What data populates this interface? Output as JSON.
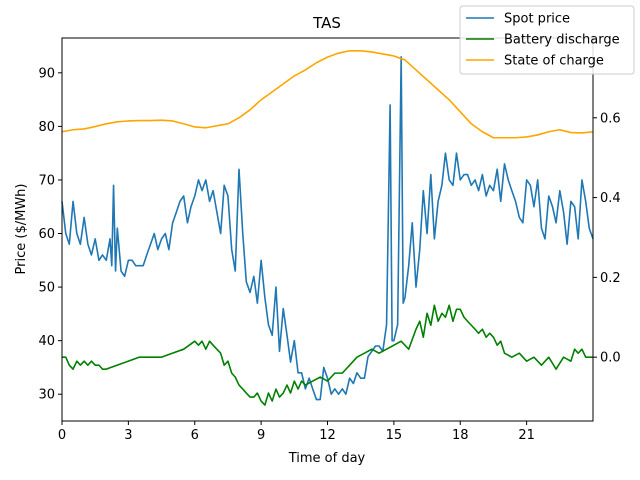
{
  "chart_data": {
    "type": "line",
    "title": "TAS",
    "xlabel": "Time of day",
    "ylabel": "Price ($/MWh)",
    "xlim": [
      0,
      24
    ],
    "ylim_left": [
      25,
      96.5
    ],
    "ylim_right": [
      -0.16,
      0.8
    ],
    "x_ticks": [
      0,
      3,
      6,
      9,
      12,
      15,
      18,
      21
    ],
    "y_ticks_left": [
      30,
      40,
      50,
      60,
      70,
      80,
      90
    ],
    "y_ticks_right": [
      0.0,
      0.2,
      0.4,
      0.6
    ],
    "legend_position": "top-right",
    "grid": false,
    "series": [
      {
        "name": "Spot price",
        "color": "#1f77b4",
        "axis": "left",
        "x": [
          0,
          0.17,
          0.33,
          0.5,
          0.67,
          0.83,
          1.0,
          1.17,
          1.33,
          1.5,
          1.67,
          1.83,
          2.0,
          2.17,
          2.25,
          2.33,
          2.42,
          2.5,
          2.67,
          2.83,
          3.0,
          3.17,
          3.33,
          3.5,
          3.67,
          3.83,
          4.0,
          4.17,
          4.33,
          4.5,
          4.67,
          4.83,
          5.0,
          5.17,
          5.33,
          5.5,
          5.67,
          5.83,
          6.0,
          6.17,
          6.33,
          6.5,
          6.67,
          6.83,
          7.0,
          7.17,
          7.33,
          7.5,
          7.67,
          7.83,
          8.0,
          8.17,
          8.33,
          8.5,
          8.67,
          8.83,
          9.0,
          9.17,
          9.33,
          9.5,
          9.67,
          9.83,
          10.0,
          10.17,
          10.33,
          10.5,
          10.67,
          10.83,
          11.0,
          11.17,
          11.33,
          11.5,
          11.67,
          11.83,
          12.0,
          12.17,
          12.33,
          12.5,
          12.67,
          12.83,
          13.0,
          13.17,
          13.33,
          13.5,
          13.67,
          13.83,
          14.0,
          14.17,
          14.33,
          14.5,
          14.67,
          14.83,
          14.92,
          15.0,
          15.17,
          15.33,
          15.42,
          15.5,
          15.67,
          15.83,
          16.0,
          16.17,
          16.33,
          16.5,
          16.67,
          16.83,
          17.0,
          17.17,
          17.33,
          17.5,
          17.67,
          17.83,
          18.0,
          18.17,
          18.33,
          18.5,
          18.67,
          18.83,
          19.0,
          19.17,
          19.33,
          19.5,
          19.67,
          19.83,
          20.0,
          20.17,
          20.33,
          20.5,
          20.67,
          20.83,
          21.0,
          21.17,
          21.33,
          21.5,
          21.67,
          21.83,
          22.0,
          22.17,
          22.33,
          22.5,
          22.67,
          22.83,
          23.0,
          23.17,
          23.33,
          23.5,
          23.67,
          23.83,
          24.0
        ],
        "values": [
          66,
          60,
          58,
          66,
          60,
          58,
          63,
          58,
          56,
          59,
          55,
          56,
          55,
          59,
          54,
          69,
          53,
          61,
          53,
          52,
          55,
          55,
          54,
          54,
          54,
          56,
          58,
          60,
          57,
          59,
          60,
          57,
          62,
          64,
          66,
          67,
          62,
          65,
          67,
          70,
          68,
          70,
          66,
          68,
          64,
          60,
          69,
          67,
          57,
          53,
          72,
          60,
          51,
          49,
          52,
          47,
          55,
          48,
          43,
          41,
          50,
          38,
          46,
          41,
          36,
          40,
          34,
          34,
          31,
          33,
          31,
          29,
          29,
          35,
          33,
          30,
          31,
          30,
          31,
          30,
          33,
          32,
          34,
          33,
          33,
          37,
          38,
          39,
          39,
          38,
          43,
          84,
          40,
          40,
          43,
          93,
          47,
          48,
          54,
          62,
          50,
          57,
          68,
          60,
          71,
          59,
          66,
          69,
          75,
          70,
          69,
          75,
          70,
          71,
          71,
          69,
          70,
          68,
          71,
          67,
          69,
          68,
          72,
          66,
          73,
          70,
          68,
          66,
          63,
          62,
          70,
          69,
          65,
          70,
          61,
          59,
          67,
          65,
          62,
          68,
          64,
          58,
          66,
          65,
          59,
          70,
          66,
          61,
          59
        ]
      },
      {
        "name": "Battery discharge",
        "color": "#008000",
        "axis": "right",
        "x": [
          0,
          0.17,
          0.33,
          0.5,
          0.67,
          0.83,
          1.0,
          1.17,
          1.33,
          1.5,
          1.67,
          1.83,
          2.0,
          2.5,
          3.0,
          3.5,
          4.0,
          4.5,
          5.0,
          5.5,
          6.0,
          6.17,
          6.33,
          6.5,
          6.67,
          6.83,
          7.0,
          7.17,
          7.33,
          7.5,
          7.67,
          7.83,
          8.0,
          8.17,
          8.33,
          8.5,
          8.67,
          8.83,
          9.0,
          9.17,
          9.33,
          9.5,
          9.67,
          9.83,
          10.0,
          10.17,
          10.33,
          10.5,
          10.67,
          10.83,
          11.0,
          11.33,
          11.67,
          12.0,
          12.33,
          12.67,
          13.0,
          13.33,
          13.67,
          14.0,
          14.33,
          14.67,
          15.0,
          15.33,
          15.67,
          16.0,
          16.17,
          16.33,
          16.5,
          16.67,
          16.83,
          17.0,
          17.17,
          17.33,
          17.5,
          17.67,
          17.83,
          18.0,
          18.17,
          18.33,
          18.5,
          18.67,
          18.83,
          19.0,
          19.17,
          19.33,
          19.5,
          19.67,
          19.83,
          20.0,
          20.33,
          20.67,
          21.0,
          21.33,
          21.67,
          22.0,
          22.33,
          22.67,
          23.0,
          23.17,
          23.33,
          23.5,
          23.67,
          24.0
        ],
        "values": [
          0.0,
          0.0,
          -0.02,
          -0.03,
          -0.01,
          -0.02,
          -0.01,
          -0.02,
          -0.01,
          -0.02,
          -0.02,
          -0.03,
          -0.03,
          -0.02,
          -0.01,
          0.0,
          0.0,
          0.0,
          0.01,
          0.02,
          0.04,
          0.03,
          0.04,
          0.02,
          0.04,
          0.03,
          0.02,
          0.01,
          -0.02,
          -0.01,
          -0.04,
          -0.05,
          -0.07,
          -0.08,
          -0.09,
          -0.1,
          -0.1,
          -0.09,
          -0.11,
          -0.12,
          -0.09,
          -0.11,
          -0.08,
          -0.1,
          -0.09,
          -0.07,
          -0.09,
          -0.06,
          -0.08,
          -0.06,
          -0.07,
          -0.06,
          -0.05,
          -0.06,
          -0.04,
          -0.04,
          -0.02,
          0.0,
          0.01,
          0.02,
          0.01,
          0.02,
          0.03,
          0.04,
          0.02,
          0.07,
          0.09,
          0.05,
          0.11,
          0.08,
          0.13,
          0.09,
          0.11,
          0.1,
          0.13,
          0.09,
          0.12,
          0.12,
          0.1,
          0.09,
          0.08,
          0.07,
          0.06,
          0.07,
          0.05,
          0.06,
          0.05,
          0.03,
          0.04,
          0.01,
          0.0,
          0.01,
          -0.01,
          0.0,
          -0.02,
          0.0,
          -0.03,
          0.0,
          -0.01,
          0.02,
          0.01,
          0.02,
          0.0,
          0.0
        ]
      },
      {
        "name": "State of charge",
        "color": "#ffa500",
        "axis": "right",
        "x": [
          0,
          0.5,
          1.0,
          1.5,
          2.0,
          2.5,
          3.0,
          3.5,
          4.0,
          4.5,
          5.0,
          5.5,
          6.0,
          6.5,
          7.0,
          7.5,
          8.0,
          8.5,
          9.0,
          9.5,
          10.0,
          10.5,
          11.0,
          11.5,
          12.0,
          12.5,
          13.0,
          13.5,
          14.0,
          14.5,
          15.0,
          15.5,
          16.0,
          16.5,
          17.0,
          17.5,
          18.0,
          18.5,
          19.0,
          19.5,
          20.0,
          20.5,
          21.0,
          21.5,
          22.0,
          22.5,
          23.0,
          23.5,
          24.0
        ],
        "values": [
          0.565,
          0.57,
          0.572,
          0.578,
          0.585,
          0.59,
          0.592,
          0.593,
          0.593,
          0.594,
          0.592,
          0.585,
          0.577,
          0.575,
          0.58,
          0.585,
          0.6,
          0.62,
          0.645,
          0.665,
          0.685,
          0.705,
          0.72,
          0.738,
          0.752,
          0.762,
          0.768,
          0.768,
          0.765,
          0.76,
          0.755,
          0.745,
          0.72,
          0.695,
          0.67,
          0.645,
          0.615,
          0.585,
          0.565,
          0.55,
          0.55,
          0.55,
          0.552,
          0.557,
          0.565,
          0.57,
          0.563,
          0.562,
          0.565
        ]
      }
    ]
  }
}
